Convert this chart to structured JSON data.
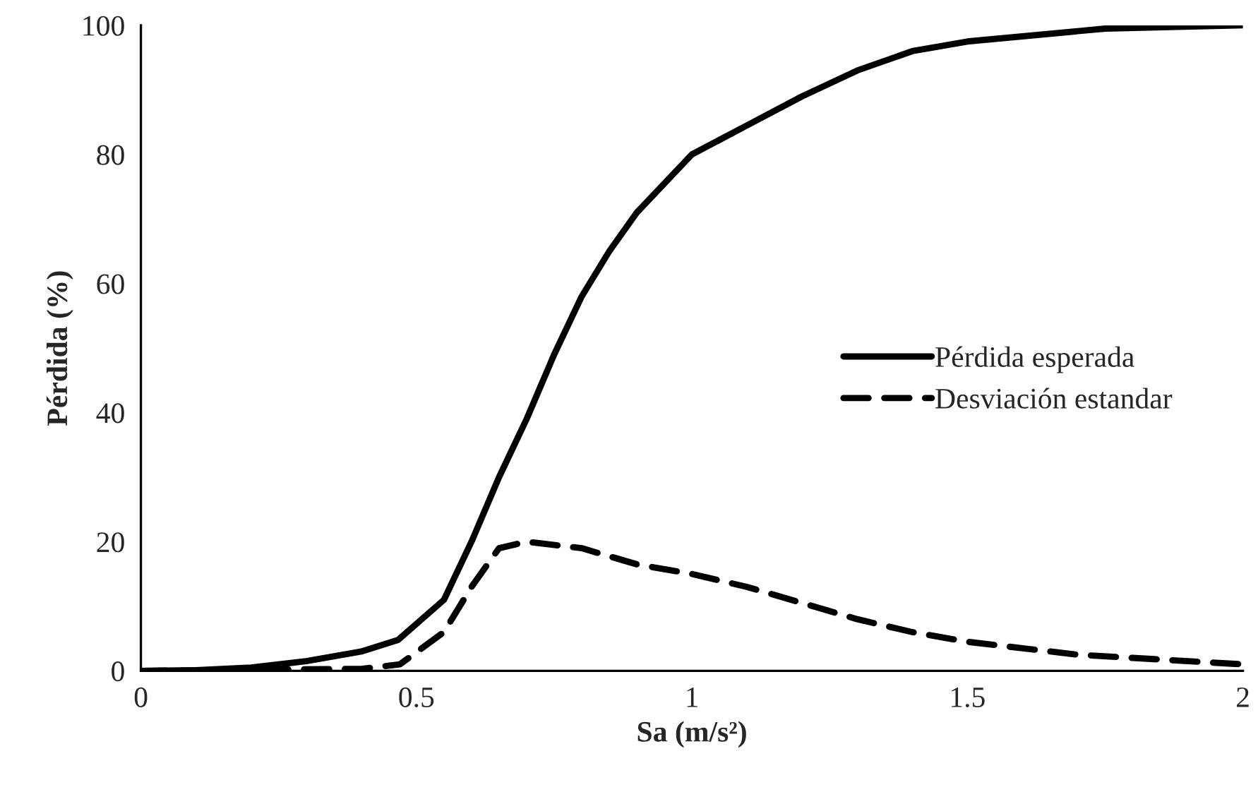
{
  "chart_data": {
    "type": "line",
    "xlabel": "Sa (m/s²)",
    "ylabel": "Pérdida (%)",
    "xlim": [
      0,
      2
    ],
    "xticks": [
      0,
      0.5,
      1,
      1.5,
      2
    ],
    "ylim": [
      0,
      100
    ],
    "yticks": [
      0,
      20,
      40,
      60,
      80,
      100
    ],
    "grid": false,
    "legend": "right",
    "marker": "none",
    "series": [
      {
        "name": "Pérdida esperada",
        "color": "#000000",
        "line_style": "solid",
        "x": [
          0,
          0.1,
          0.2,
          0.3,
          0.4,
          0.467,
          0.55,
          0.6,
          0.65,
          0.7,
          0.75,
          0.8,
          0.85,
          0.9,
          1.0,
          1.1,
          1.2,
          1.3,
          1.4,
          1.5,
          1.75,
          2.0
        ],
        "values": [
          0,
          0.1,
          0.5,
          1.5,
          3,
          4.8,
          11,
          20,
          30,
          39,
          49,
          58,
          65,
          71,
          80,
          84.5,
          89,
          93,
          96,
          97.5,
          99.5,
          100
        ]
      },
      {
        "name": "Desviación estandar",
        "color": "#000000",
        "line_style": "dashed",
        "x": [
          0,
          0.4,
          0.47,
          0.55,
          0.6,
          0.65,
          0.7,
          0.8,
          0.9,
          1.0,
          1.1,
          1.2,
          1.3,
          1.4,
          1.5,
          1.6,
          1.7,
          1.8,
          1.9,
          2.0
        ],
        "values": [
          0,
          0.3,
          1,
          6,
          13,
          19,
          20,
          19,
          16.5,
          15,
          13,
          10.5,
          8,
          6,
          4.5,
          3.5,
          2.5,
          2,
          1.5,
          1
        ]
      }
    ]
  }
}
